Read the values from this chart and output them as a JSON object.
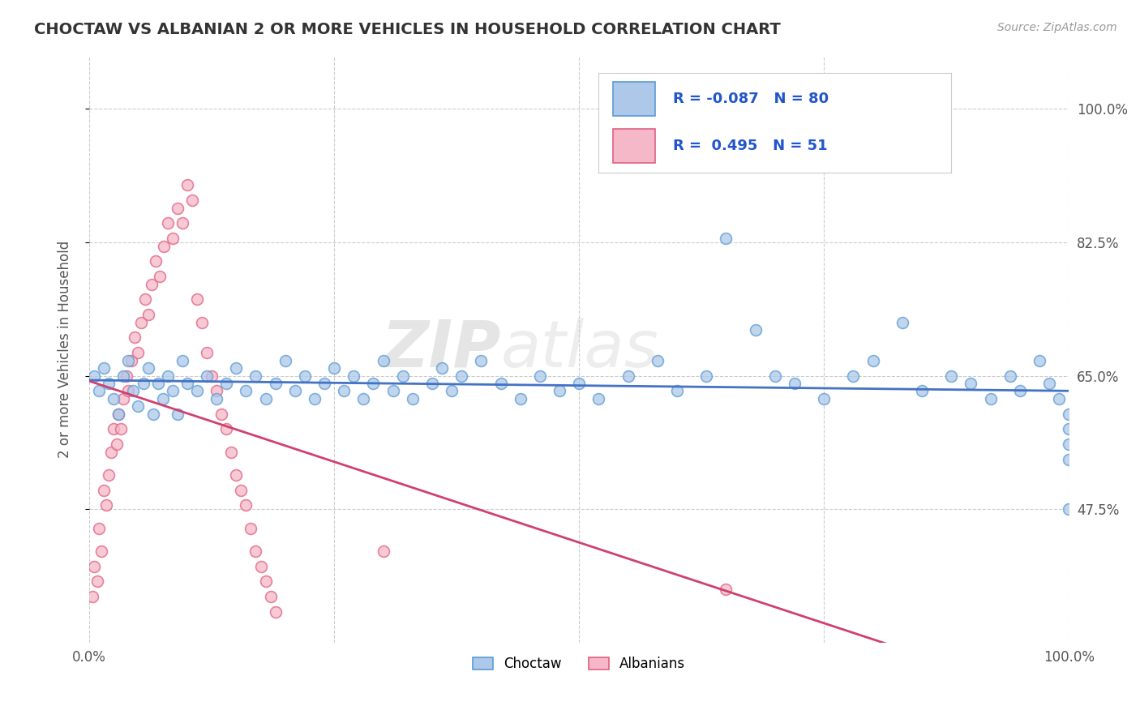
{
  "title": "CHOCTAW VS ALBANIAN 2 OR MORE VEHICLES IN HOUSEHOLD CORRELATION CHART",
  "source_text": "Source: ZipAtlas.com",
  "ylabel": "2 or more Vehicles in Household",
  "legend_labels": [
    "Choctaw",
    "Albanians"
  ],
  "choctaw_R": -0.087,
  "choctaw_N": 80,
  "albanian_R": 0.495,
  "albanian_N": 51,
  "choctaw_color": "#adc8e8",
  "albanian_color": "#f5b8c8",
  "choctaw_edge_color": "#5b9bd5",
  "albanian_edge_color": "#e06080",
  "choctaw_line_color": "#4472c4",
  "albanian_line_color": "#d04070",
  "xlim": [
    0,
    100
  ],
  "ylim": [
    30,
    107
  ],
  "yticks": [
    47.5,
    65.0,
    82.5,
    100.0
  ],
  "ytick_labels": [
    "47.5%",
    "65.0%",
    "82.5%",
    "100.0%"
  ],
  "background_color": "#ffffff",
  "grid_color": "#cccccc",
  "watermark_zip": "ZIP",
  "watermark_atlas": "atlas",
  "choctaw_x": [
    0.5,
    1.0,
    1.5,
    2.0,
    2.5,
    3.0,
    3.5,
    4.0,
    4.5,
    5.0,
    5.5,
    6.0,
    6.5,
    7.0,
    7.5,
    8.0,
    8.5,
    9.0,
    9.5,
    10.0,
    11.0,
    12.0,
    13.0,
    14.0,
    15.0,
    16.0,
    17.0,
    18.0,
    19.0,
    20.0,
    21.0,
    22.0,
    23.0,
    24.0,
    25.0,
    26.0,
    27.0,
    28.0,
    29.0,
    30.0,
    31.0,
    32.0,
    33.0,
    35.0,
    36.0,
    37.0,
    38.0,
    40.0,
    42.0,
    44.0,
    46.0,
    48.0,
    50.0,
    52.0,
    55.0,
    58.0,
    60.0,
    63.0,
    65.0,
    68.0,
    70.0,
    72.0,
    75.0,
    78.0,
    80.0,
    83.0,
    85.0,
    88.0,
    90.0,
    92.0,
    94.0,
    95.0,
    97.0,
    98.0,
    99.0,
    100.0,
    100.0,
    100.0,
    100.0,
    100.0
  ],
  "choctaw_y": [
    65.0,
    63.0,
    66.0,
    64.0,
    62.0,
    60.0,
    65.0,
    67.0,
    63.0,
    61.0,
    64.0,
    66.0,
    60.0,
    64.0,
    62.0,
    65.0,
    63.0,
    60.0,
    67.0,
    64.0,
    63.0,
    65.0,
    62.0,
    64.0,
    66.0,
    63.0,
    65.0,
    62.0,
    64.0,
    67.0,
    63.0,
    65.0,
    62.0,
    64.0,
    66.0,
    63.0,
    65.0,
    62.0,
    64.0,
    67.0,
    63.0,
    65.0,
    62.0,
    64.0,
    66.0,
    63.0,
    65.0,
    67.0,
    64.0,
    62.0,
    65.0,
    63.0,
    64.0,
    62.0,
    65.0,
    67.0,
    63.0,
    65.0,
    83.0,
    71.0,
    65.0,
    64.0,
    62.0,
    65.0,
    67.0,
    72.0,
    63.0,
    65.0,
    64.0,
    62.0,
    65.0,
    63.0,
    67.0,
    64.0,
    62.0,
    60.0,
    58.0,
    56.0,
    54.0,
    47.5
  ],
  "albanian_x": [
    0.3,
    0.5,
    0.8,
    1.0,
    1.2,
    1.5,
    1.7,
    2.0,
    2.2,
    2.5,
    2.8,
    3.0,
    3.2,
    3.5,
    3.8,
    4.0,
    4.3,
    4.6,
    5.0,
    5.3,
    5.7,
    6.0,
    6.4,
    6.8,
    7.2,
    7.6,
    8.0,
    8.5,
    9.0,
    9.5,
    10.0,
    10.5,
    11.0,
    11.5,
    12.0,
    12.5,
    13.0,
    13.5,
    14.0,
    14.5,
    15.0,
    15.5,
    16.0,
    16.5,
    17.0,
    17.5,
    18.0,
    18.5,
    19.0,
    30.0,
    65.0
  ],
  "albanian_y": [
    36.0,
    40.0,
    38.0,
    45.0,
    42.0,
    50.0,
    48.0,
    52.0,
    55.0,
    58.0,
    56.0,
    60.0,
    58.0,
    62.0,
    65.0,
    63.0,
    67.0,
    70.0,
    68.0,
    72.0,
    75.0,
    73.0,
    77.0,
    80.0,
    78.0,
    82.0,
    85.0,
    83.0,
    87.0,
    85.0,
    90.0,
    88.0,
    75.0,
    72.0,
    68.0,
    65.0,
    63.0,
    60.0,
    58.0,
    55.0,
    52.0,
    50.0,
    48.0,
    45.0,
    42.0,
    40.0,
    38.0,
    36.0,
    34.0,
    42.0,
    37.0
  ]
}
